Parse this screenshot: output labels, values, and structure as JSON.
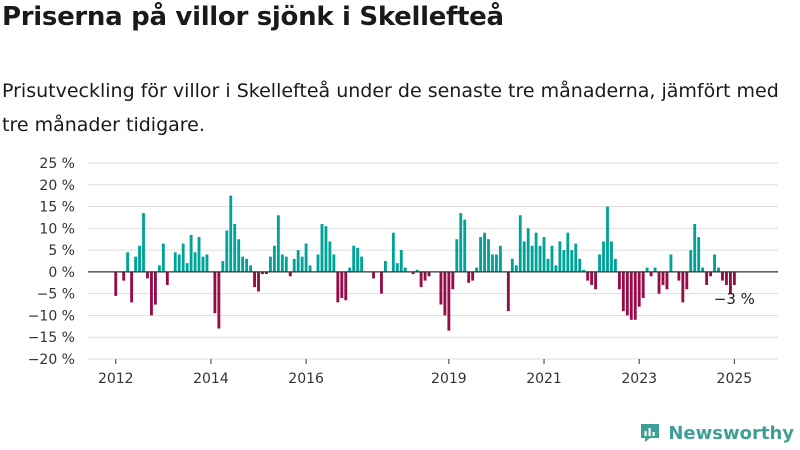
{
  "header": {
    "title": "Priserna på villor sjönk i Skellefteå",
    "subtitle": "Prisutveckling för villor i Skellefteå under de senaste tre månaderna, jämfört med tre månader tidigare."
  },
  "brand": {
    "name": "Newsworthy",
    "icon": "newsworthy-logo-icon"
  },
  "colors": {
    "positive": "#00a398",
    "negative": "#970b47",
    "grid": "#dddddd",
    "axis": "#333333",
    "brand": "#3d9f95"
  },
  "chart_data": {
    "type": "bar",
    "title": "",
    "xlabel": "",
    "ylabel": "",
    "ylim": [
      -20,
      25
    ],
    "xlim": [
      "2011-06",
      "2025-12"
    ],
    "x_axis": "month",
    "grid": true,
    "legend": "none",
    "y_ticks": [
      {
        "value": 25,
        "label": "25 %"
      },
      {
        "value": 20,
        "label": "20 %"
      },
      {
        "value": 15,
        "label": "15 %"
      },
      {
        "value": 10,
        "label": "10 %"
      },
      {
        "value": 5,
        "label": "5 %"
      },
      {
        "value": 0,
        "label": "0 %"
      },
      {
        "value": -5,
        "label": "−5 %"
      },
      {
        "value": -10,
        "label": "−10 %"
      },
      {
        "value": -15,
        "label": "−15 %"
      },
      {
        "value": -20,
        "label": "−20 %"
      }
    ],
    "x_ticks": [
      {
        "date": "2012-01",
        "label": "2012"
      },
      {
        "date": "2014-01",
        "label": "2014"
      },
      {
        "date": "2016-01",
        "label": "2016"
      },
      {
        "date": "2019-01",
        "label": "2019"
      },
      {
        "date": "2021-01",
        "label": "2021"
      },
      {
        "date": "2023-01",
        "label": "2023"
      },
      {
        "date": "2025-01",
        "label": "2025"
      }
    ],
    "series": [
      {
        "values": [
          [
            "2012-01",
            -5.5
          ],
          [
            "2012-03",
            -2
          ],
          [
            "2012-04",
            4.5
          ],
          [
            "2012-05",
            -7
          ],
          [
            "2012-06",
            3.5
          ],
          [
            "2012-07",
            6
          ],
          [
            "2012-08",
            13.5
          ],
          [
            "2012-09",
            -1.5
          ],
          [
            "2012-10",
            -10
          ],
          [
            "2012-11",
            -7.5
          ],
          [
            "2012-12",
            1.5
          ],
          [
            "2013-01",
            6.5
          ],
          [
            "2013-02",
            -3
          ],
          [
            "2013-04",
            4.5
          ],
          [
            "2013-05",
            4
          ],
          [
            "2013-06",
            6.5
          ],
          [
            "2013-07",
            2
          ],
          [
            "2013-08",
            8.5
          ],
          [
            "2013-09",
            4.5
          ],
          [
            "2013-10",
            8
          ],
          [
            "2013-11",
            3.5
          ],
          [
            "2013-12",
            4
          ],
          [
            "2014-02",
            -9.5
          ],
          [
            "2014-03",
            -13
          ],
          [
            "2014-04",
            2.5
          ],
          [
            "2014-05",
            9.5
          ],
          [
            "2014-06",
            17.5
          ],
          [
            "2014-07",
            11
          ],
          [
            "2014-08",
            7.5
          ],
          [
            "2014-09",
            3.5
          ],
          [
            "2014-10",
            3
          ],
          [
            "2014-11",
            1.5
          ],
          [
            "2014-12",
            -3.5
          ],
          [
            "2015-01",
            -4.5
          ],
          [
            "2015-02",
            -0.5
          ],
          [
            "2015-03",
            -0.5
          ],
          [
            "2015-04",
            3.5
          ],
          [
            "2015-05",
            6
          ],
          [
            "2015-06",
            13
          ],
          [
            "2015-07",
            4
          ],
          [
            "2015-08",
            3.5
          ],
          [
            "2015-09",
            -1
          ],
          [
            "2015-10",
            3
          ],
          [
            "2015-11",
            5
          ],
          [
            "2015-12",
            3.5
          ],
          [
            "2016-01",
            6.5
          ],
          [
            "2016-02",
            1.5
          ],
          [
            "2016-04",
            4
          ],
          [
            "2016-05",
            11
          ],
          [
            "2016-06",
            10.5
          ],
          [
            "2016-07",
            7
          ],
          [
            "2016-08",
            4
          ],
          [
            "2016-09",
            -7
          ],
          [
            "2016-10",
            -6
          ],
          [
            "2016-11",
            -6.5
          ],
          [
            "2016-12",
            1
          ],
          [
            "2017-01",
            6
          ],
          [
            "2017-02",
            5.5
          ],
          [
            "2017-03",
            3.5
          ],
          [
            "2017-06",
            -1.5
          ],
          [
            "2017-08",
            -5
          ],
          [
            "2017-09",
            2.5
          ],
          [
            "2017-11",
            9
          ],
          [
            "2017-12",
            2
          ],
          [
            "2018-01",
            5
          ],
          [
            "2018-02",
            1
          ],
          [
            "2018-04",
            -0.5
          ],
          [
            "2018-05",
            0.5
          ],
          [
            "2018-06",
            -3.5
          ],
          [
            "2018-07",
            -2
          ],
          [
            "2018-08",
            -1
          ],
          [
            "2018-11",
            -7.5
          ],
          [
            "2018-12",
            -10
          ],
          [
            "2019-01",
            -13.5
          ],
          [
            "2019-02",
            -4
          ],
          [
            "2019-03",
            7.5
          ],
          [
            "2019-04",
            13.5
          ],
          [
            "2019-05",
            12
          ],
          [
            "2019-06",
            -2.5
          ],
          [
            "2019-07",
            -2
          ],
          [
            "2019-08",
            1
          ],
          [
            "2019-09",
            8
          ],
          [
            "2019-10",
            9
          ],
          [
            "2019-11",
            7.5
          ],
          [
            "2019-12",
            4
          ],
          [
            "2020-01",
            4
          ],
          [
            "2020-02",
            6
          ],
          [
            "2020-04",
            -9
          ],
          [
            "2020-05",
            3
          ],
          [
            "2020-06",
            1.5
          ],
          [
            "2020-07",
            13
          ],
          [
            "2020-08",
            7
          ],
          [
            "2020-09",
            10
          ],
          [
            "2020-10",
            6
          ],
          [
            "2020-11",
            9
          ],
          [
            "2020-12",
            6
          ],
          [
            "2021-01",
            8
          ],
          [
            "2021-02",
            3
          ],
          [
            "2021-03",
            6
          ],
          [
            "2021-04",
            1.5
          ],
          [
            "2021-05",
            7
          ],
          [
            "2021-06",
            5
          ],
          [
            "2021-07",
            9
          ],
          [
            "2021-08",
            5
          ],
          [
            "2021-09",
            6.5
          ],
          [
            "2021-10",
            3
          ],
          [
            "2021-11",
            0.5
          ],
          [
            "2021-12",
            -2
          ],
          [
            "2022-01",
            -3
          ],
          [
            "2022-02",
            -4
          ],
          [
            "2022-03",
            4
          ],
          [
            "2022-04",
            7
          ],
          [
            "2022-05",
            15
          ],
          [
            "2022-06",
            7
          ],
          [
            "2022-07",
            3
          ],
          [
            "2022-08",
            -4
          ],
          [
            "2022-09",
            -9
          ],
          [
            "2022-10",
            -10
          ],
          [
            "2022-11",
            -11
          ],
          [
            "2022-12",
            -11
          ],
          [
            "2023-01",
            -8
          ],
          [
            "2023-02",
            -6
          ],
          [
            "2023-03",
            1
          ],
          [
            "2023-04",
            -1
          ],
          [
            "2023-05",
            1
          ],
          [
            "2023-06",
            -5
          ],
          [
            "2023-07",
            -3
          ],
          [
            "2023-08",
            -4
          ],
          [
            "2023-09",
            4
          ],
          [
            "2023-11",
            -2
          ],
          [
            "2023-12",
            -7
          ],
          [
            "2024-01",
            -4
          ],
          [
            "2024-02",
            5
          ],
          [
            "2024-03",
            11
          ],
          [
            "2024-04",
            8
          ],
          [
            "2024-05",
            1
          ],
          [
            "2024-06",
            -3
          ],
          [
            "2024-07",
            -1
          ],
          [
            "2024-08",
            4
          ],
          [
            "2024-09",
            1
          ],
          [
            "2024-10",
            -2
          ],
          [
            "2024-11",
            -3
          ],
          [
            "2024-12",
            -5
          ],
          [
            "2025-01",
            -3
          ]
        ]
      }
    ],
    "annotations": [
      {
        "date": "2025-01",
        "value": -3,
        "label": "−3 %"
      }
    ]
  }
}
